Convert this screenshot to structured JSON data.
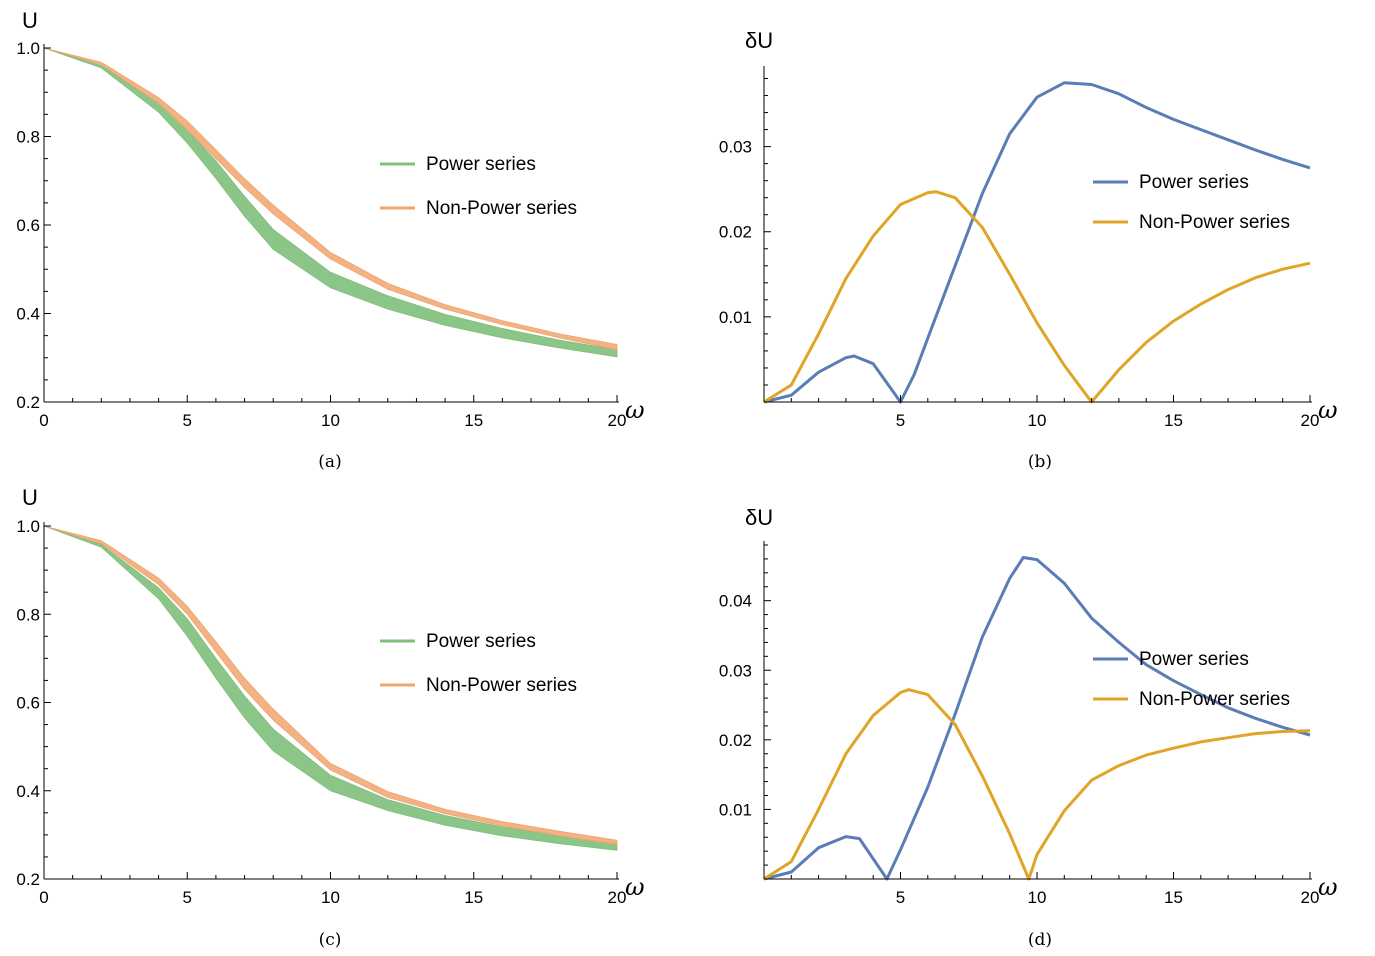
{
  "colors": {
    "power_band": "#7fbf7b",
    "nonpower_band": "#f0a56e",
    "power_line": "#5b7db5",
    "nonpower_line": "#e0a426"
  },
  "chart_data": [
    {
      "panel": "a",
      "type": "area",
      "caption": "(a)",
      "ylabel": "U",
      "xlabel": "ω",
      "xlim": [
        0,
        20
      ],
      "ylim": [
        0.2,
        1.0
      ],
      "xticks": [
        "0",
        "5",
        "10",
        "15",
        "20"
      ],
      "yticks": [
        "0.2",
        "0.4",
        "0.6",
        "0.8",
        "1.0"
      ],
      "legend_position": "center-right",
      "x": [
        0,
        2,
        4,
        5,
        6,
        7,
        8,
        10,
        12,
        14,
        16,
        18,
        20
      ],
      "series": [
        {
          "name": "Power series",
          "lower": [
            1.0,
            0.955,
            0.855,
            0.785,
            0.705,
            0.62,
            0.545,
            0.458,
            0.41,
            0.373,
            0.345,
            0.322,
            0.302
          ],
          "upper": [
            1.0,
            0.96,
            0.875,
            0.815,
            0.745,
            0.665,
            0.59,
            0.493,
            0.44,
            0.398,
            0.366,
            0.34,
            0.318
          ]
        },
        {
          "name": "Non-Power series",
          "lower": [
            1.0,
            0.962,
            0.875,
            0.815,
            0.75,
            0.685,
            0.625,
            0.523,
            0.455,
            0.41,
            0.375,
            0.345,
            0.318
          ],
          "upper": [
            1.0,
            0.968,
            0.888,
            0.835,
            0.77,
            0.705,
            0.645,
            0.538,
            0.468,
            0.42,
            0.384,
            0.354,
            0.33
          ]
        }
      ]
    },
    {
      "panel": "b",
      "type": "line",
      "caption": "(b)",
      "ylabel": "δU",
      "xlabel": "ω",
      "xlim": [
        0,
        20
      ],
      "ylim": [
        0,
        0.039
      ],
      "xticks": [
        "5",
        "10",
        "15",
        "20"
      ],
      "yticks": [
        "0.01",
        "0.02",
        "0.03"
      ],
      "ytick_values": [
        0.01,
        0.02,
        0.03
      ],
      "legend_position": "right",
      "series": [
        {
          "name": "Power series",
          "x": [
            0,
            1,
            2,
            3,
            3.3,
            4,
            5,
            5.5,
            6,
            7,
            8,
            9,
            10,
            11,
            12,
            13,
            14,
            15,
            16,
            17,
            18,
            19,
            20
          ],
          "y": [
            0,
            0.0008,
            0.0035,
            0.0052,
            0.0054,
            0.0045,
            0,
            0.0032,
            0.0075,
            0.016,
            0.0245,
            0.0315,
            0.0358,
            0.0375,
            0.0373,
            0.0362,
            0.0346,
            0.0332,
            0.032,
            0.0308,
            0.0296,
            0.0285,
            0.0275
          ]
        },
        {
          "name": "Non-Power series",
          "x": [
            0,
            1,
            2,
            3,
            4,
            5,
            6,
            6.3,
            7,
            8,
            9,
            10,
            11,
            12,
            13,
            14,
            15,
            16,
            17,
            18,
            19,
            20
          ],
          "y": [
            0,
            0.002,
            0.008,
            0.0145,
            0.0195,
            0.0232,
            0.0246,
            0.0247,
            0.024,
            0.0205,
            0.015,
            0.0093,
            0.0043,
            0,
            0.0038,
            0.007,
            0.0095,
            0.0115,
            0.0132,
            0.0146,
            0.0156,
            0.0163
          ]
        }
      ]
    },
    {
      "panel": "c",
      "type": "area",
      "caption": "(c)",
      "ylabel": "U",
      "xlabel": "ω",
      "xlim": [
        0,
        20
      ],
      "ylim": [
        0.2,
        1.0
      ],
      "xticks": [
        "0",
        "5",
        "10",
        "15",
        "20"
      ],
      "yticks": [
        "0.2",
        "0.4",
        "0.6",
        "0.8",
        "1.0"
      ],
      "legend_position": "center-right",
      "x": [
        0,
        2,
        4,
        5,
        6,
        7,
        8,
        10,
        12,
        14,
        16,
        18,
        20
      ],
      "series": [
        {
          "name": "Power series",
          "lower": [
            1.0,
            0.952,
            0.835,
            0.75,
            0.655,
            0.565,
            0.49,
            0.4,
            0.355,
            0.322,
            0.298,
            0.28,
            0.265
          ],
          "upper": [
            1.0,
            0.958,
            0.86,
            0.79,
            0.7,
            0.615,
            0.54,
            0.435,
            0.38,
            0.344,
            0.318,
            0.297,
            0.28
          ]
        },
        {
          "name": "Non-Power series",
          "lower": [
            1.0,
            0.96,
            0.867,
            0.8,
            0.715,
            0.63,
            0.56,
            0.447,
            0.385,
            0.348,
            0.32,
            0.298,
            0.278
          ],
          "upper": [
            1.0,
            0.967,
            0.882,
            0.818,
            0.738,
            0.655,
            0.585,
            0.462,
            0.398,
            0.358,
            0.33,
            0.308,
            0.288
          ]
        }
      ]
    },
    {
      "panel": "d",
      "type": "line",
      "caption": "(d)",
      "ylabel": "δU",
      "xlabel": "ω",
      "xlim": [
        0,
        20
      ],
      "ylim": [
        0,
        0.048
      ],
      "xticks": [
        "5",
        "10",
        "15",
        "20"
      ],
      "yticks": [
        "0.01",
        "0.02",
        "0.03",
        "0.04"
      ],
      "ytick_values": [
        0.01,
        0.02,
        0.03,
        0.04
      ],
      "legend_position": "right",
      "series": [
        {
          "name": "Power series",
          "x": [
            0,
            1,
            2,
            3,
            3.5,
            4.5,
            5,
            6,
            7,
            8,
            9,
            9.5,
            10,
            11,
            12,
            13,
            14,
            15,
            16,
            17,
            18,
            19,
            20
          ],
          "y": [
            0,
            0.001,
            0.0045,
            0.0061,
            0.0058,
            0,
            0.0042,
            0.0132,
            0.0237,
            0.0348,
            0.0432,
            0.0462,
            0.0459,
            0.0425,
            0.0375,
            0.034,
            0.0308,
            0.0285,
            0.0265,
            0.0246,
            0.0231,
            0.0218,
            0.0207
          ]
        },
        {
          "name": "Non-Power series",
          "x": [
            0,
            1,
            2,
            3,
            4,
            5,
            5.3,
            6,
            7,
            8,
            9,
            9.7,
            10,
            11,
            12,
            13,
            14,
            15,
            16,
            17,
            18,
            19,
            20
          ],
          "y": [
            0,
            0.0025,
            0.01,
            0.018,
            0.0235,
            0.0268,
            0.0272,
            0.0265,
            0.0222,
            0.0148,
            0.0065,
            0,
            0.0035,
            0.0098,
            0.0142,
            0.0163,
            0.0178,
            0.0188,
            0.0197,
            0.0203,
            0.0209,
            0.0212,
            0.0213
          ]
        }
      ]
    }
  ]
}
